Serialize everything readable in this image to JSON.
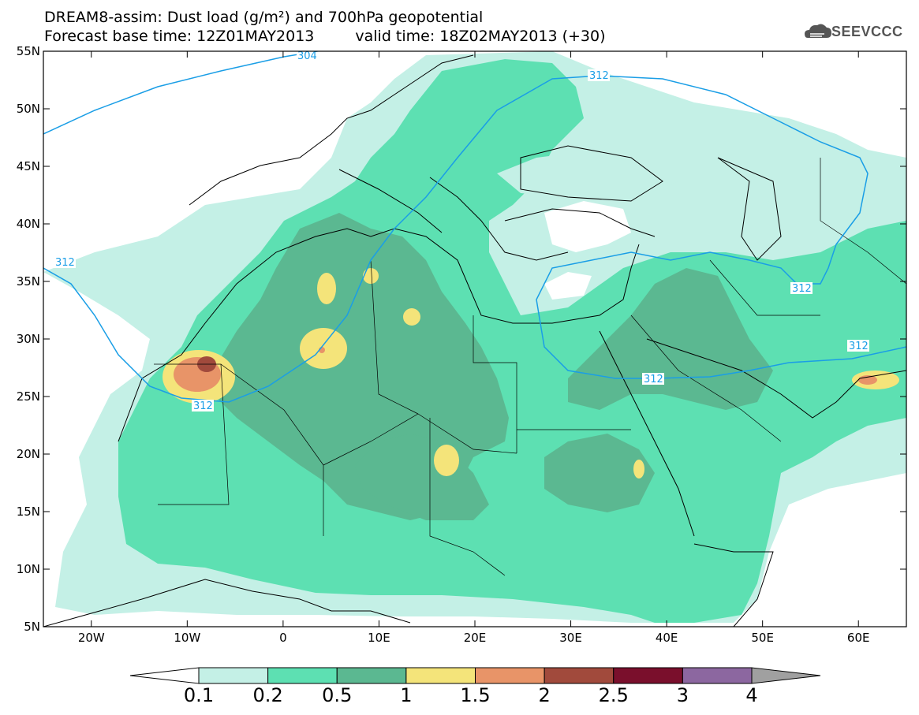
{
  "title": {
    "line1": "DREAM8-assim: Dust load (g/m²) and 700hPa geopotential",
    "base_time": "Forecast base time: 12Z01MAY2013",
    "valid_time": "valid time: 18Z02MAY2013 (+30)"
  },
  "logo": {
    "text": "SEEVCCC",
    "icon": "cloud-icon"
  },
  "map": {
    "lon_ticks": [
      "20W",
      "10W",
      "0",
      "10E",
      "20E",
      "30E",
      "40E",
      "50E",
      "60E"
    ],
    "lat_ticks": [
      "55N",
      "50N",
      "45N",
      "40N",
      "35N",
      "30N",
      "25N",
      "20N",
      "15N",
      "10N",
      "5N"
    ],
    "lon_range": [
      -25,
      65
    ],
    "lat_range": [
      5,
      55
    ],
    "contour_labels": [
      "304",
      "312",
      "312",
      "312",
      "312",
      "312",
      "312"
    ]
  },
  "colorbar": {
    "levels": [
      "0.1",
      "0.2",
      "0.5",
      "1",
      "1.5",
      "2",
      "2.5",
      "3",
      "4"
    ],
    "colors": [
      "#c4f0e6",
      "#5de0b2",
      "#5bb891",
      "#f4e47a",
      "#e89468",
      "#a14a3c",
      "#7a0f2c",
      "#8c67a0"
    ],
    "under_color": "#ffffff",
    "over_color": "#a0a0a0"
  },
  "colors": {
    "contour": "#1a9ee6",
    "coast": "#000000"
  }
}
